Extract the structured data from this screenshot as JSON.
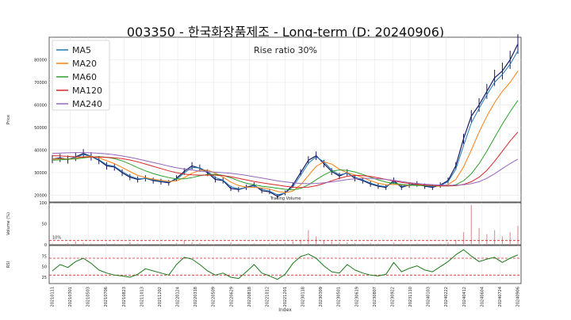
{
  "chart_data": {
    "type": "line",
    "title": "003350 - 한국화장품제조 - Long-term (D: 20240906)",
    "annotation": "Rise ratio 30%",
    "xlabel": "Index",
    "price_panel": {
      "ylabel": "Price",
      "yticks": [
        20000,
        30000,
        40000,
        50000,
        60000,
        70000,
        80000
      ],
      "ylim": [
        17000,
        90000
      ],
      "legend_position": "top-left",
      "series": [
        {
          "name": "MA5",
          "color": "#1f77b4"
        },
        {
          "name": "MA20",
          "color": "#ff7f0e"
        },
        {
          "name": "MA60",
          "color": "#2ca02c"
        },
        {
          "name": "MA120",
          "color": "#d62728"
        },
        {
          "name": "MA240",
          "color": "#9467bd"
        }
      ],
      "price_close": [
        36000,
        36500,
        35800,
        37000,
        38500,
        37200,
        35500,
        33000,
        32500,
        30000,
        28000,
        27000,
        27500,
        26500,
        26000,
        25500,
        27500,
        30500,
        33000,
        32000,
        30000,
        27000,
        26500,
        23000,
        22500,
        23500,
        24500,
        22000,
        21500,
        19500,
        21000,
        24500,
        30000,
        35500,
        37500,
        34000,
        30500,
        28500,
        30000,
        27500,
        26500,
        25000,
        24000,
        23500,
        26500,
        23500,
        24500,
        25000,
        24000,
        23500,
        24500,
        26500,
        33000,
        45000,
        55000,
        60000,
        66000,
        72000,
        75000,
        80000,
        87000
      ],
      "ma5": [
        36000,
        36200,
        36000,
        36800,
        38000,
        37300,
        35800,
        33500,
        32800,
        30500,
        28500,
        27300,
        27400,
        26800,
        26200,
        25800,
        27000,
        29800,
        32300,
        32100,
        30500,
        27800,
        26700,
        23800,
        22800,
        23300,
        24200,
        22600,
        21800,
        20200,
        20900,
        23700,
        28800,
        34200,
        37000,
        34800,
        31200,
        29000,
        29700,
        28000,
        26800,
        25400,
        24300,
        23800,
        25800,
        24000,
        24400,
        24800,
        24200,
        23800,
        24300,
        26000,
        31500,
        42000,
        52000,
        58500,
        64500,
        70000,
        73500,
        78000,
        84000
      ],
      "ma20": [
        36000,
        36100,
        36000,
        36300,
        37000,
        37200,
        36600,
        35300,
        34000,
        32300,
        30500,
        28800,
        27800,
        27100,
        26600,
        26100,
        26300,
        27800,
        29700,
        31000,
        31100,
        29800,
        28000,
        25800,
        24300,
        23600,
        23500,
        23200,
        22700,
        21700,
        21100,
        21800,
        24600,
        28700,
        32800,
        34800,
        33800,
        31500,
        29900,
        29000,
        27800,
        26400,
        25300,
        24600,
        24800,
        24600,
        24300,
        24400,
        24400,
        24200,
        24000,
        24700,
        27000,
        32500,
        40000,
        48000,
        55000,
        61000,
        66000,
        70000,
        75000
      ],
      "ma60": [
        35500,
        35700,
        35900,
        36100,
        36500,
        36900,
        37100,
        36800,
        36200,
        35200,
        33800,
        32200,
        30800,
        29600,
        28600,
        27800,
        27300,
        27300,
        27800,
        28600,
        29200,
        29300,
        28800,
        27700,
        26400,
        25300,
        24600,
        24000,
        23600,
        23100,
        22600,
        22400,
        23000,
        24600,
        26800,
        29000,
        30600,
        31200,
        31000,
        30300,
        29200,
        28000,
        26800,
        25800,
        25200,
        24800,
        24500,
        24300,
        24300,
        24200,
        24100,
        24100,
        24600,
        26400,
        29500,
        34000,
        39500,
        45500,
        51500,
        57000,
        62000
      ],
      "ma120": [
        37500,
        37400,
        37200,
        37000,
        36900,
        36900,
        36900,
        36800,
        36600,
        36200,
        35600,
        34800,
        33800,
        32800,
        31800,
        30800,
        30000,
        29400,
        29000,
        28900,
        28900,
        28900,
        28700,
        28200,
        27500,
        26800,
        26100,
        25500,
        25000,
        24500,
        24000,
        23600,
        23400,
        23600,
        24200,
        25200,
        26400,
        27500,
        28400,
        28800,
        28700,
        28300,
        27700,
        27000,
        26300,
        25700,
        25200,
        24800,
        24500,
        24300,
        24200,
        24100,
        24200,
        24800,
        26000,
        28000,
        31000,
        35000,
        39500,
        44000,
        48000
      ],
      "ma240": [
        38500,
        38700,
        38800,
        38900,
        38900,
        38800,
        38600,
        38300,
        37900,
        37400,
        36800,
        36100,
        35300,
        34500,
        33700,
        32900,
        32200,
        31600,
        31100,
        30700,
        30400,
        30200,
        30000,
        29700,
        29300,
        28800,
        28200,
        27600,
        27000,
        26400,
        25900,
        25500,
        25200,
        25100,
        25200,
        25500,
        25900,
        26400,
        26900,
        27300,
        27500,
        27500,
        27300,
        27000,
        26600,
        26100,
        25600,
        25200,
        24900,
        24700,
        24500,
        24400,
        24400,
        24600,
        25100,
        26000,
        27500,
        29500,
        31800,
        34000,
        36000
      ]
    },
    "volume_panel": {
      "ylabel": "Volume (%)",
      "yticks": [
        0,
        50,
        100
      ],
      "ylim": [
        0,
        100
      ],
      "threshold_label": "10%",
      "threshold": 10,
      "overlay_label": "Trading Volume",
      "values": [
        3,
        2,
        4,
        8,
        5,
        3,
        2,
        4,
        3,
        2,
        6,
        3,
        2,
        2,
        3,
        2,
        4,
        10,
        6,
        4,
        3,
        2,
        2,
        5,
        3,
        2,
        3,
        2,
        4,
        3,
        5,
        8,
        12,
        35,
        20,
        10,
        8,
        5,
        6,
        4,
        3,
        4,
        3,
        2,
        5,
        3,
        2,
        3,
        2,
        2,
        3,
        6,
        12,
        30,
        95,
        40,
        25,
        35,
        20,
        30,
        45
      ]
    },
    "rsi_panel": {
      "ylabel": "RSI",
      "yticks": [
        25,
        50,
        75
      ],
      "ylim": [
        10,
        100
      ],
      "upper": 70,
      "lower": 30,
      "values": [
        40,
        55,
        48,
        62,
        70,
        58,
        42,
        35,
        30,
        28,
        25,
        32,
        45,
        40,
        35,
        30,
        55,
        72,
        68,
        55,
        40,
        30,
        35,
        25,
        22,
        38,
        55,
        35,
        28,
        20,
        32,
        58,
        74,
        80,
        70,
        52,
        38,
        35,
        55,
        42,
        35,
        30,
        28,
        32,
        60,
        38,
        46,
        52,
        42,
        38,
        50,
        62,
        78,
        90,
        75,
        62,
        68,
        72,
        60,
        70,
        78
      ]
    },
    "xticks": [
      "20210111",
      "20210301",
      "20210503",
      "20210706",
      "20210823",
      "20211013",
      "20211202",
      "20220124",
      "20220318",
      "20220509",
      "20220629",
      "20220818",
      "20221012",
      "20221201",
      "20230118",
      "20230309",
      "20230501",
      "20230619",
      "20230807",
      "20230922",
      "20231110",
      "20240103",
      "20240222",
      "20240412",
      "20240604",
      "20240724",
      "20240906"
    ],
    "grid": true
  }
}
